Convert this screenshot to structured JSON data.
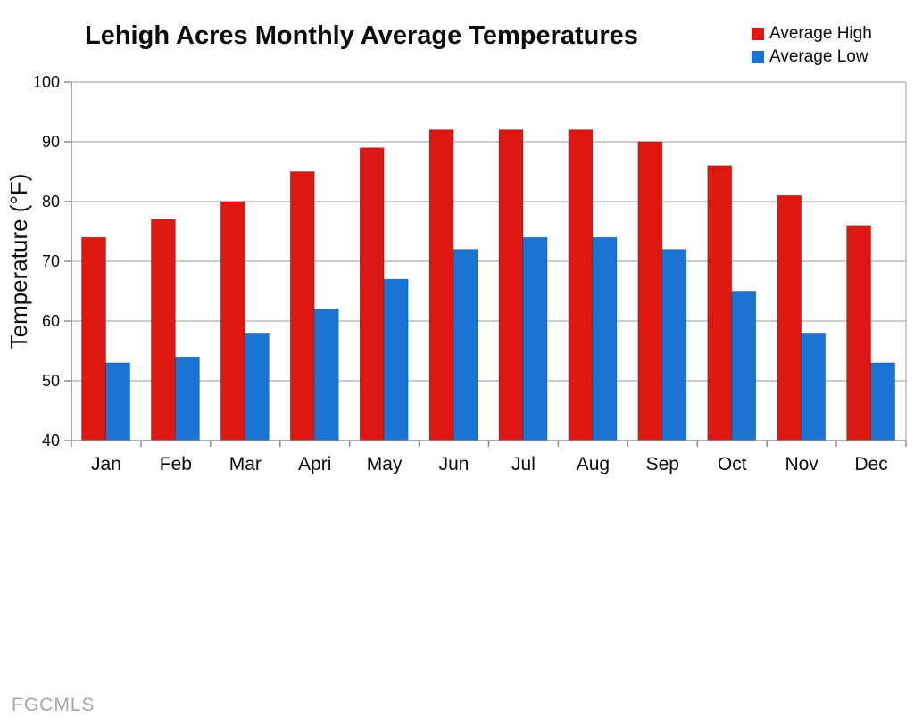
{
  "page": {
    "watermark": "FGCMLS"
  },
  "chart_data": {
    "type": "bar",
    "title": "Lehigh Acres Monthly Average Temperatures",
    "categories": [
      "Jan",
      "Feb",
      "Mar",
      "Apri",
      "May",
      "Jun",
      "Jul",
      "Aug",
      "Sep",
      "Oct",
      "Nov",
      "Dec"
    ],
    "series": [
      {
        "name": "Average High",
        "color": "#dd1712",
        "values": [
          74,
          77,
          80,
          85,
          89,
          92,
          92,
          92,
          90,
          86,
          81,
          76
        ]
      },
      {
        "name": "Average Low",
        "color": "#1b73d3",
        "values": [
          53,
          54,
          58,
          62,
          67,
          72,
          74,
          74,
          72,
          65,
          58,
          53
        ]
      }
    ],
    "xlabel": "",
    "ylabel": "Temperature (°F)",
    "ylim": [
      40,
      100
    ],
    "ytick_step": 10,
    "grid": true,
    "legend_position": "top-right",
    "colors": {
      "grid_line": "#bcbcbc",
      "axis_line": "#8f8f8f",
      "text": "#0b0b0b"
    }
  }
}
